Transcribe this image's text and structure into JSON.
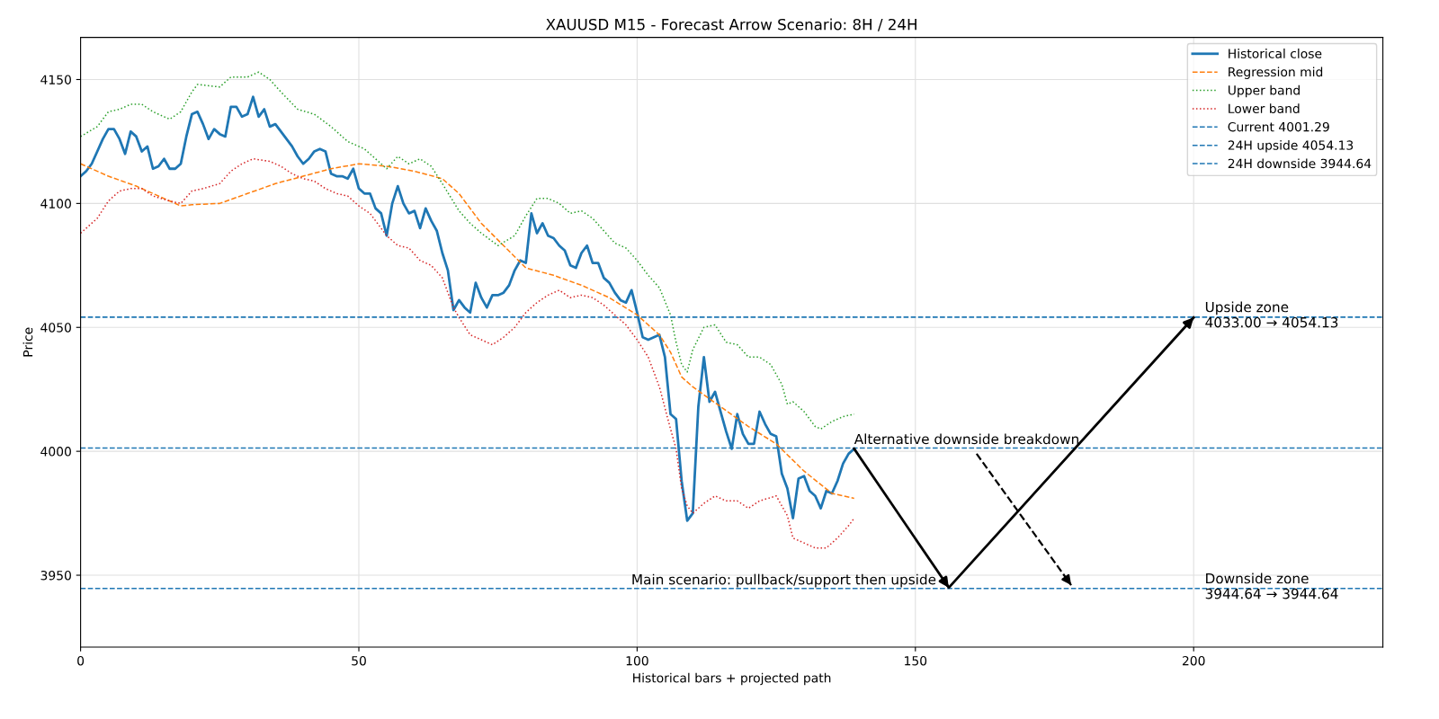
{
  "chart_data": {
    "type": "line",
    "title": "XAUUSD M15 - Forecast Arrow Scenario: 8H / 24H",
    "xlabel": "Historical bars + projected path",
    "ylabel": "Price",
    "xlim": [
      0,
      234
    ],
    "ylim": [
      3921,
      4167
    ],
    "xticks": [
      0,
      50,
      100,
      150,
      200
    ],
    "yticks": [
      3950,
      4000,
      4050,
      4100,
      4150
    ],
    "grid": true,
    "legend": "top right",
    "series": [
      {
        "name": "Historical close",
        "color": "#1f77b4",
        "line_style": "solid",
        "x": [
          0,
          1,
          2,
          3,
          4,
          5,
          6,
          7,
          8,
          9,
          10,
          11,
          12,
          13,
          14,
          15,
          16,
          17,
          18,
          19,
          20,
          21,
          22,
          23,
          24,
          25,
          26,
          27,
          28,
          29,
          30,
          31,
          32,
          33,
          34,
          35,
          36,
          37,
          38,
          39,
          40,
          41,
          42,
          43,
          44,
          45,
          46,
          47,
          48,
          49,
          50,
          51,
          52,
          53,
          54,
          55,
          56,
          57,
          58,
          59,
          60,
          61,
          62,
          63,
          64,
          65,
          66,
          67,
          68,
          69,
          70,
          71,
          72,
          73,
          74,
          75,
          76,
          77,
          78,
          79,
          80,
          81,
          82,
          83,
          84,
          85,
          86,
          87,
          88,
          89,
          90,
          91,
          92,
          93,
          94,
          95,
          96,
          97,
          98,
          99,
          100,
          101,
          102,
          103,
          104,
          105,
          106,
          107,
          108,
          109,
          110,
          111,
          112,
          113,
          114,
          115,
          116,
          117,
          118,
          119,
          120,
          121,
          122,
          123,
          124,
          125,
          126,
          127,
          128,
          129,
          130,
          131,
          132,
          133,
          134,
          135,
          136,
          137,
          138,
          139
        ],
        "values": [
          4111,
          4113,
          4116,
          4121,
          4126,
          4130,
          4130,
          4126,
          4120,
          4129,
          4127,
          4121,
          4123,
          4114,
          4115,
          4118,
          4114,
          4114,
          4116,
          4127,
          4136,
          4137,
          4132,
          4126,
          4130,
          4128,
          4127,
          4139,
          4139,
          4135,
          4136,
          4143,
          4135,
          4138,
          4131,
          4132,
          4129,
          4126,
          4123,
          4119,
          4116,
          4118,
          4121,
          4122,
          4121,
          4112,
          4111,
          4111,
          4110,
          4114,
          4106,
          4104,
          4104,
          4098,
          4096,
          4087,
          4100,
          4107,
          4100,
          4096,
          4097,
          4090,
          4098,
          4093,
          4089,
          4080,
          4073,
          4057,
          4061,
          4058,
          4056,
          4068,
          4062,
          4058,
          4063,
          4063,
          4064,
          4067,
          4073,
          4077,
          4076,
          4096,
          4088,
          4092,
          4087,
          4086,
          4083,
          4081,
          4075,
          4074,
          4080,
          4083,
          4076,
          4076,
          4070,
          4068,
          4064,
          4061,
          4060,
          4065,
          4056,
          4046,
          4045,
          4046,
          4047,
          4038,
          4015,
          4013,
          3988,
          3972,
          3975,
          4018,
          4038,
          4020,
          4024,
          4016,
          4008,
          4001,
          4015,
          4007,
          4003,
          4003,
          4016,
          4011,
          4007,
          4006,
          3991,
          3985,
          3973,
          3989,
          3990,
          3984,
          3982,
          3977,
          3984,
          3983,
          3988,
          3995,
          3999,
          4001
        ]
      },
      {
        "name": "Regression mid",
        "color": "#ff7f0e",
        "line_style": "dashed",
        "x": [
          0,
          5,
          10,
          15,
          18,
          20,
          25,
          30,
          35,
          40,
          45,
          50,
          55,
          60,
          65,
          68,
          72,
          76,
          80,
          85,
          90,
          95,
          100,
          104,
          106,
          108,
          110,
          115,
          120,
          125,
          130,
          135,
          139
        ],
        "values": [
          4116,
          4111,
          4107,
          4102,
          4099,
          4099.5,
          4100,
          4104,
          4108,
          4111,
          4114,
          4116,
          4115,
          4113,
          4110,
          4104,
          4092,
          4083,
          4074,
          4071,
          4067,
          4062,
          4055,
          4047,
          4040,
          4030,
          4026,
          4018,
          4010,
          4003,
          3992,
          3983,
          3981
        ]
      },
      {
        "name": "Upper band",
        "color": "#2ca02c",
        "line_style": "dotted",
        "x": [
          0,
          3,
          5,
          7,
          9,
          11,
          13,
          16,
          18,
          20,
          21,
          25,
          27,
          30,
          32,
          34,
          36,
          39,
          42,
          45,
          48,
          51,
          53,
          55,
          57,
          59,
          61,
          63,
          65,
          68,
          70,
          72,
          75,
          78,
          80,
          82,
          84,
          86,
          88,
          90,
          92,
          94,
          96,
          98,
          100,
          102,
          104,
          106,
          107,
          108,
          109,
          110,
          112,
          114,
          116,
          118,
          120,
          122,
          124,
          126,
          127,
          128,
          130,
          132,
          133,
          135,
          137,
          139
        ],
        "values": [
          4127,
          4131,
          4137,
          4138,
          4140,
          4140,
          4137,
          4134,
          4137,
          4145,
          4148,
          4147,
          4151,
          4151,
          4153,
          4150,
          4145,
          4138,
          4136,
          4131,
          4125,
          4122,
          4118,
          4114,
          4119,
          4116,
          4118,
          4115,
          4108,
          4097,
          4092,
          4088,
          4083,
          4087,
          4095,
          4102,
          4102,
          4100,
          4096,
          4097,
          4094,
          4089,
          4084,
          4082,
          4077,
          4071,
          4066,
          4055,
          4044,
          4035,
          4032,
          4041,
          4050,
          4051,
          4044,
          4043,
          4038,
          4038,
          4035,
          4027,
          4019,
          4020,
          4016,
          4010,
          4009,
          4012,
          4014,
          4015
        ]
      },
      {
        "name": "Lower band",
        "color": "#d62728",
        "line_style": "dotted",
        "x": [
          0,
          3,
          5,
          7,
          9,
          11,
          13,
          16,
          18,
          20,
          22,
          25,
          27,
          29,
          31,
          34,
          36,
          38,
          40,
          42,
          44,
          46,
          48,
          50,
          52,
          54,
          55,
          57,
          59,
          61,
          63,
          65,
          67,
          68,
          70,
          72,
          74,
          76,
          78,
          80,
          82,
          84,
          86,
          88,
          90,
          92,
          94,
          96,
          98,
          100,
          102,
          104,
          106,
          107,
          108,
          109,
          110,
          112,
          114,
          116,
          118,
          120,
          122,
          125,
          127,
          128,
          130,
          132,
          134,
          136,
          138,
          139
        ],
        "values": [
          4088,
          4094,
          4101,
          4105,
          4106,
          4106,
          4103,
          4101,
          4100,
          4105,
          4106,
          4108,
          4113,
          4116,
          4118,
          4117,
          4115,
          4112,
          4110,
          4109,
          4106,
          4104,
          4103,
          4099,
          4096,
          4090,
          4087,
          4083,
          4082,
          4077,
          4075,
          4070,
          4058,
          4054,
          4047,
          4045,
          4043,
          4046,
          4050,
          4056,
          4060,
          4063,
          4065,
          4062,
          4063,
          4062,
          4059,
          4055,
          4051,
          4045,
          4038,
          4026,
          4009,
          4001,
          3985,
          3978,
          3975,
          3979,
          3982,
          3980,
          3980,
          3977,
          3980,
          3982,
          3974,
          3965,
          3963,
          3961,
          3961,
          3965,
          3970,
          3973
        ]
      },
      {
        "color": "#000000",
        "line_style": "solid",
        "x": [
          139,
          156,
          200
        ],
        "values": [
          4001,
          3945,
          4054
        ]
      },
      {
        "color": "#000000",
        "line_style": "dashed",
        "x": [
          161,
          178
        ],
        "values": [
          3999,
          3946
        ]
      }
    ],
    "ref_lines": [
      {
        "axis": "y",
        "value": 4001.29,
        "label": "Current 4001.29",
        "color": "#1f77b4",
        "line_style": "dashed"
      },
      {
        "axis": "y",
        "value": 4054.13,
        "label": "24H upside 4054.13",
        "color": "#1f77b4",
        "line_style": "dashed"
      },
      {
        "axis": "y",
        "value": 3944.64,
        "label": "24H downside 3944.64",
        "color": "#1f77b4",
        "line_style": "dashed"
      }
    ],
    "annotations": [
      {
        "text": "Main scenario: pullback/support then upside",
        "x": 156,
        "y": 3944.64
      },
      {
        "text": "Alternative downside breakdown",
        "x": 139,
        "y": 4001.29
      },
      {
        "text": "Upside zone\n4033.00 → 4054.13",
        "x": 202,
        "y": 4054.13
      },
      {
        "text": "Downside zone\n3944.64 → 3944.64",
        "x": 202,
        "y": 3944.64
      }
    ]
  }
}
